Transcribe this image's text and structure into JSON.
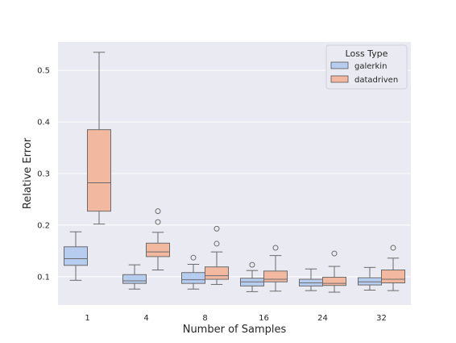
{
  "chart_data": {
    "type": "boxplot",
    "xlabel": "Number of Samples",
    "ylabel": "Relative Error",
    "categories": [
      "1",
      "4",
      "8",
      "16",
      "24",
      "32"
    ],
    "ylim": [
      0.045,
      0.555
    ],
    "yticks": [
      "0.1",
      "0.2",
      "0.3",
      "0.4",
      "0.5"
    ],
    "grid": true,
    "legend": {
      "title": "Loss Type",
      "placement": "top-right"
    },
    "series": [
      {
        "name": "galerkin",
        "color": "#b7cdf0",
        "boxes": [
          {
            "min": 0.093,
            "q1": 0.122,
            "median": 0.135,
            "q3": 0.158,
            "max": 0.187,
            "outliers": []
          },
          {
            "min": 0.076,
            "q1": 0.087,
            "median": 0.092,
            "q3": 0.104,
            "max": 0.123,
            "outliers": []
          },
          {
            "min": 0.076,
            "q1": 0.087,
            "median": 0.094,
            "q3": 0.108,
            "max": 0.124,
            "outliers": [
              0.137
            ]
          },
          {
            "min": 0.071,
            "q1": 0.082,
            "median": 0.09,
            "q3": 0.097,
            "max": 0.112,
            "outliers": [
              0.123
            ]
          },
          {
            "min": 0.073,
            "q1": 0.082,
            "median": 0.088,
            "q3": 0.095,
            "max": 0.115,
            "outliers": []
          },
          {
            "min": 0.074,
            "q1": 0.084,
            "median": 0.09,
            "q3": 0.098,
            "max": 0.118,
            "outliers": []
          }
        ]
      },
      {
        "name": "datadriven",
        "color": "#f2b9a0",
        "boxes": [
          {
            "min": 0.202,
            "q1": 0.227,
            "median": 0.282,
            "q3": 0.385,
            "max": 0.535,
            "outliers": []
          },
          {
            "min": 0.113,
            "q1": 0.139,
            "median": 0.148,
            "q3": 0.165,
            "max": 0.186,
            "outliers": [
              0.206,
              0.227
            ]
          },
          {
            "min": 0.085,
            "q1": 0.095,
            "median": 0.102,
            "q3": 0.119,
            "max": 0.148,
            "outliers": [
              0.164,
              0.193
            ]
          },
          {
            "min": 0.072,
            "q1": 0.09,
            "median": 0.095,
            "q3": 0.111,
            "max": 0.141,
            "outliers": [
              0.156
            ]
          },
          {
            "min": 0.07,
            "q1": 0.083,
            "median": 0.087,
            "q3": 0.099,
            "max": 0.12,
            "outliers": [
              0.145
            ]
          },
          {
            "min": 0.073,
            "q1": 0.088,
            "median": 0.095,
            "q3": 0.113,
            "max": 0.136,
            "outliers": [
              0.156
            ]
          }
        ]
      }
    ]
  }
}
